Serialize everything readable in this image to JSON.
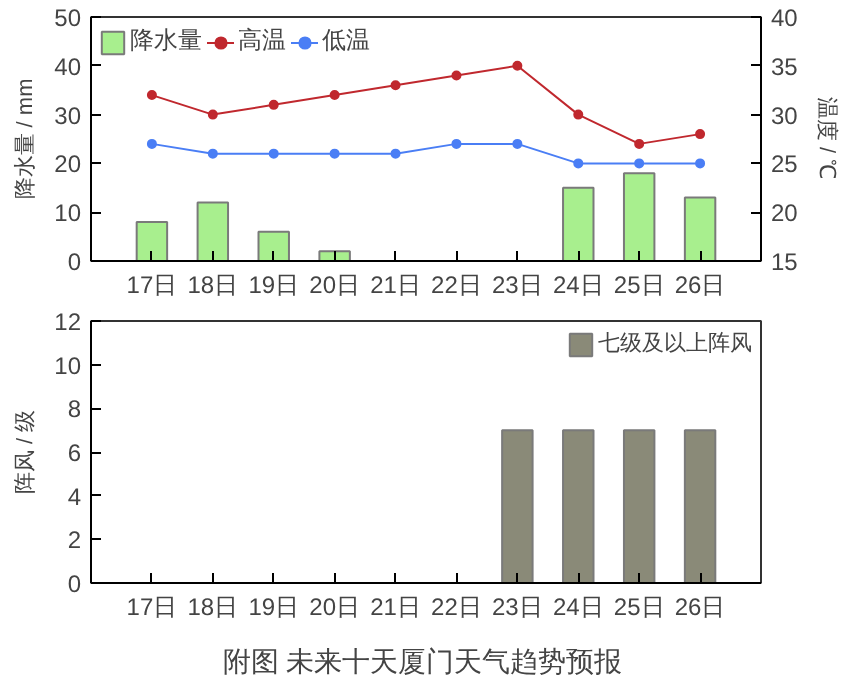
{
  "chart_data": [
    {
      "type": "bar",
      "categories": [
        "17日",
        "18日",
        "19日",
        "20日",
        "21日",
        "22日",
        "23日",
        "24日",
        "25日",
        "26日"
      ],
      "ylabel": "降水量 / mm",
      "y2label": "温度 / ℃",
      "ylim": [
        0,
        50
      ],
      "yticks": [
        0,
        10,
        20,
        30,
        40,
        50
      ],
      "y2lim": [
        15,
        40
      ],
      "y2ticks": [
        15,
        20,
        25,
        30,
        35,
        40
      ],
      "legend": "top left",
      "grid": false,
      "marker": "circle",
      "series": [
        {
          "name": "降水量",
          "type": "bar",
          "color": "#a8ef8e",
          "values": [
            8,
            12,
            6,
            2,
            null,
            null,
            null,
            15,
            18,
            13
          ]
        },
        {
          "name": "高温",
          "type": "line",
          "axis": "y2",
          "color": "#c0282e",
          "values": [
            32,
            30,
            31,
            32,
            33,
            34,
            35,
            30,
            27,
            28
          ]
        },
        {
          "name": "低温",
          "type": "line",
          "axis": "y2",
          "color": "#4a7ef5",
          "values": [
            27,
            26,
            26,
            26,
            26,
            27,
            27,
            25,
            25,
            25
          ]
        }
      ]
    },
    {
      "type": "bar",
      "categories": [
        "17日",
        "18日",
        "19日",
        "20日",
        "21日",
        "22日",
        "23日",
        "24日",
        "25日",
        "26日"
      ],
      "ylabel": "阵风 / 级",
      "ylim": [
        0,
        12
      ],
      "yticks": [
        0,
        2,
        4,
        6,
        8,
        10,
        12
      ],
      "legend": "top right",
      "grid": false,
      "series": [
        {
          "name": "七级及以上阵风",
          "color": "#8a8a78",
          "values": [
            null,
            null,
            null,
            null,
            null,
            null,
            7,
            7,
            7,
            7
          ]
        }
      ],
      "annotations": [
        "附图  未来十天厦门天气趋势预报"
      ]
    }
  ]
}
